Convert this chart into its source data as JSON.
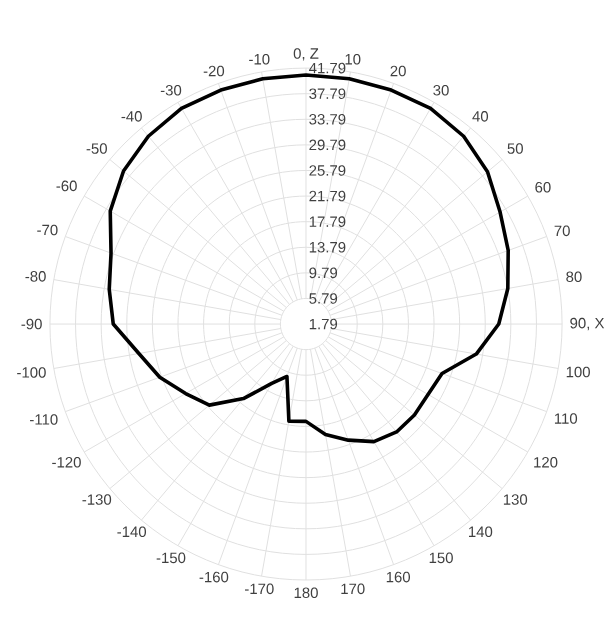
{
  "chart_data": {
    "type": "radar",
    "categories": [
      "0, Z",
      "10",
      "20",
      "30",
      "40",
      "50",
      "60",
      "70",
      "80",
      "90, X",
      "100",
      "110",
      "120",
      "130",
      "140",
      "150",
      "160",
      "170",
      "180",
      "-170",
      "-160",
      "-150",
      "-140",
      "-130",
      "-120",
      "-110",
      "-100",
      "-90",
      "-80",
      "-70",
      "-60",
      "-50",
      "-40",
      "-30",
      "-20",
      "-10"
    ],
    "ylim": [
      1.79,
      41.79
    ],
    "yticks": [
      1.79,
      5.79,
      9.79,
      13.79,
      17.79,
      21.79,
      25.79,
      29.79,
      33.79,
      37.79,
      41.79
    ],
    "grid": true,
    "series": [
      {
        "color": "#000000",
        "values": [
          40.7,
          40.7,
          40.7,
          40.7,
          40.1,
          38.8,
          36.8,
          35.4,
          33.8,
          31.9,
          28.8,
          24.4,
          23.8,
          23.9,
          23.8,
          23.0,
          21.1,
          19.3,
          17.0,
          17.2,
          10.5,
          12.5,
          17.0,
          21.5,
          23.5,
          26.1,
          28.3,
          31.9,
          33.0,
          34.2,
          37.1,
          39.0,
          40.1,
          40.7,
          40.7,
          40.7
        ]
      }
    ]
  }
}
